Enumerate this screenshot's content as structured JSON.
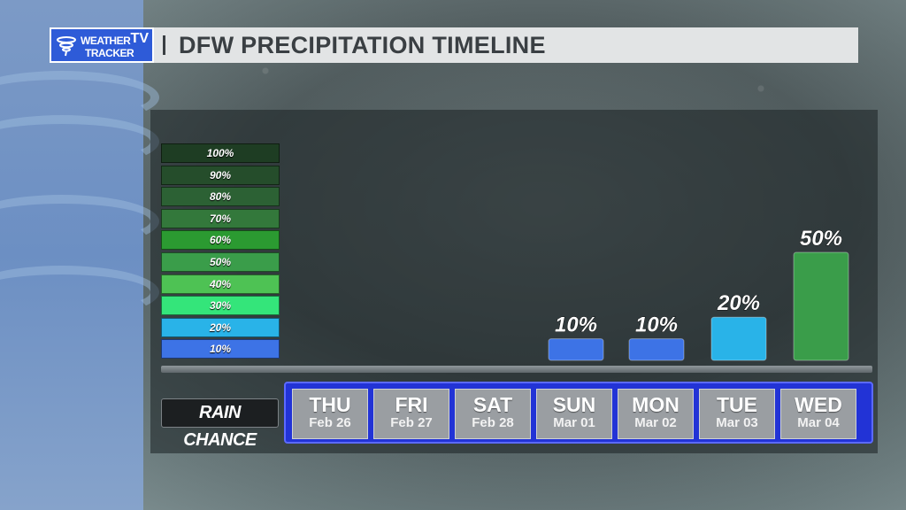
{
  "header": {
    "logo_line1": "WEATHER",
    "logo_line2": "TRACKER",
    "logo_tv": "TV",
    "title": "DFW PRECIPITATION TIMELINE"
  },
  "legend": [
    {
      "label": "100%",
      "color": "#1e3d23"
    },
    {
      "label": "90%",
      "color": "#254d2b"
    },
    {
      "label": "80%",
      "color": "#2c6134"
    },
    {
      "label": "70%",
      "color": "#33783b"
    },
    {
      "label": "60%",
      "color": "#2b9a31"
    },
    {
      "label": "50%",
      "color": "#3a9d4a"
    },
    {
      "label": "40%",
      "color": "#4ec254"
    },
    {
      "label": "30%",
      "color": "#34e57a"
    },
    {
      "label": "20%",
      "color": "#29b3e8"
    },
    {
      "label": "10%",
      "color": "#3d73e6"
    }
  ],
  "rain_chance_label": "RAIN CHANCE",
  "chart_data": {
    "type": "bar",
    "categories": [
      "THU",
      "FRI",
      "SAT",
      "SUN",
      "MON",
      "TUE",
      "WED"
    ],
    "dates": [
      "Feb 26",
      "Feb 27",
      "Feb 28",
      "Mar 01",
      "Mar 02",
      "Mar 03",
      "Mar 04"
    ],
    "values": [
      0,
      0,
      0,
      10,
      10,
      20,
      50
    ],
    "value_labels": [
      "",
      "",
      "",
      "10%",
      "10%",
      "20%",
      "50%"
    ],
    "bar_colors": [
      "",
      "",
      "",
      "#3d73e6",
      "#3d73e6",
      "#29b3e8",
      "#3a9d4a"
    ],
    "ylim": [
      0,
      100
    ]
  }
}
